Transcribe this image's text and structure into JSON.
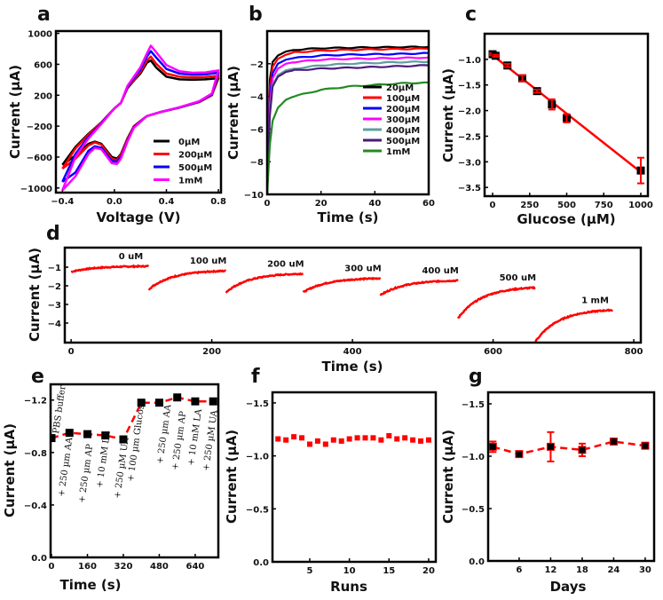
{
  "chart_data": [
    {
      "panel": "a",
      "type": "line",
      "xlabel": "Voltage (V)",
      "ylabel": "Current (µA)",
      "xlim": [
        -0.45,
        0.82
      ],
      "ylim": [
        -1060,
        1030
      ],
      "xticks": [
        -0.4,
        0.0,
        0.4,
        0.8
      ],
      "xtick_labels": [
        "−0.4",
        "0.0",
        "0.4",
        "0.8"
      ],
      "yticks": [
        -1000,
        -600,
        -200,
        200,
        600,
        1000
      ],
      "ytick_labels": [
        "−1000",
        "−600",
        "−200",
        "200",
        "600",
        "1000"
      ],
      "legend": "lower-right",
      "x_forward": [
        -0.4,
        -0.3,
        -0.2,
        -0.1,
        0,
        0.05,
        0.1,
        0.15,
        0.2,
        0.25,
        0.28,
        0.32,
        0.4,
        0.5,
        0.6,
        0.7,
        0.8
      ],
      "x_reverse": [
        0.8,
        0.75,
        0.65,
        0.5,
        0.35,
        0.25,
        0.15,
        0.1,
        0.05,
        0.02,
        -0.02,
        -0.1,
        -0.15,
        -0.2,
        -0.3,
        -0.4
      ],
      "series": [
        {
          "name": "0µM",
          "color": "#000000",
          "y_forward": [
            -700,
            -470,
            -300,
            -150,
            30,
            100,
            290,
            390,
            480,
            620,
            650,
            560,
            440,
            405,
            400,
            405,
            420
          ],
          "y_reverse": [
            420,
            200,
            110,
            40,
            -20,
            -70,
            -200,
            -360,
            -560,
            -620,
            -600,
            -430,
            -400,
            -430,
            -580,
            -700
          ]
        },
        {
          "name": "200µM",
          "color": "#ff0000",
          "y_forward": [
            -750,
            -490,
            -310,
            -150,
            30,
            100,
            300,
            400,
            500,
            650,
            700,
            610,
            480,
            440,
            430,
            435,
            450
          ],
          "y_reverse": [
            450,
            200,
            110,
            40,
            -20,
            -70,
            -200,
            -370,
            -570,
            -640,
            -620,
            -440,
            -410,
            -450,
            -620,
            -750
          ]
        },
        {
          "name": "500µM",
          "color": "#0000ff",
          "y_forward": [
            -920,
            -560,
            -340,
            -160,
            30,
            100,
            310,
            420,
            530,
            700,
            770,
            690,
            540,
            480,
            465,
            470,
            490
          ],
          "y_reverse": [
            490,
            210,
            115,
            40,
            -20,
            -70,
            -210,
            -390,
            -600,
            -660,
            -650,
            -480,
            -460,
            -520,
            -800,
            -920
          ]
        },
        {
          "name": "1mM",
          "color": "#ff00ff",
          "y_forward": [
            -1030,
            -600,
            -360,
            -170,
            30,
            100,
            320,
            440,
            560,
            740,
            840,
            760,
            590,
            510,
            490,
            495,
            520
          ],
          "y_reverse": [
            520,
            220,
            120,
            45,
            -20,
            -70,
            -220,
            -400,
            -620,
            -690,
            -680,
            -500,
            -480,
            -560,
            -850,
            -1030
          ]
        }
      ]
    },
    {
      "panel": "b",
      "type": "line",
      "xlabel": "Time (s)",
      "ylabel": "Current (µA)",
      "xlim": [
        0,
        60
      ],
      "ylim": [
        -10,
        0
      ],
      "xticks": [
        0,
        20,
        40,
        60
      ],
      "xtick_labels": [
        "0",
        "20",
        "40",
        "60"
      ],
      "yticks": [
        -10,
        -8,
        -6,
        -4,
        -2
      ],
      "ytick_labels": [
        "−10",
        "−8",
        "−6",
        "−4",
        "−2"
      ],
      "legend": "lower-right",
      "x": [
        0,
        1,
        2,
        4,
        7,
        10,
        20,
        30,
        40,
        50,
        60
      ],
      "series": [
        {
          "name": "20µM",
          "color": "#000000",
          "y": [
            -10,
            -3,
            -1.9,
            -1.5,
            -1.25,
            -1.15,
            -1.05,
            -1.02,
            -1.0,
            -0.98,
            -0.97
          ]
        },
        {
          "name": "100µM",
          "color": "#ff0000",
          "y": [
            -10,
            -3.5,
            -2.2,
            -1.7,
            -1.45,
            -1.3,
            -1.2,
            -1.15,
            -1.12,
            -1.1,
            -1.08
          ]
        },
        {
          "name": "200µM",
          "color": "#0000ff",
          "y": [
            -10,
            -4,
            -2.6,
            -2.0,
            -1.75,
            -1.65,
            -1.5,
            -1.45,
            -1.42,
            -1.4,
            -1.35
          ]
        },
        {
          "name": "300µM",
          "color": "#ff00ff",
          "y": [
            -10,
            -4.5,
            -2.9,
            -2.3,
            -2.0,
            -1.9,
            -1.75,
            -1.7,
            -1.68,
            -1.65,
            -1.62
          ]
        },
        {
          "name": "400µM",
          "color": "#5f9ea0",
          "y": [
            -10,
            -5,
            -3.3,
            -2.7,
            -2.4,
            -2.3,
            -2.1,
            -2.0,
            -1.95,
            -1.9,
            -1.88
          ]
        },
        {
          "name": "500µM",
          "color": "#4b1a80",
          "y": [
            -10,
            -5.2,
            -3.4,
            -2.8,
            -2.5,
            -2.4,
            -2.3,
            -2.25,
            -2.2,
            -2.15,
            -2.1
          ]
        },
        {
          "name": "1mM",
          "color": "#228b22",
          "y": [
            -10,
            -7,
            -5.5,
            -4.7,
            -4.2,
            -4.0,
            -3.6,
            -3.4,
            -3.3,
            -3.2,
            -3.15
          ]
        }
      ]
    },
    {
      "panel": "c",
      "type": "scatter",
      "xlabel": "Glucose (µM)",
      "ylabel": "Current (µA)",
      "xlim": [
        -54,
        1048
      ],
      "ylim": [
        -3.67,
        -0.5
      ],
      "xticks": [
        0,
        250,
        500,
        750,
        1000
      ],
      "xtick_labels": [
        "0",
        "250",
        "500",
        "750",
        "1000"
      ],
      "yticks": [
        -3.5,
        -3.0,
        -2.5,
        -2.0,
        -1.5,
        -1.0
      ],
      "ytick_labels": [
        "−3.5",
        "−3.0",
        "−2.5",
        "−2.0",
        "−1.5",
        "−1.0"
      ],
      "x": [
        0,
        20,
        100,
        200,
        300,
        400,
        500,
        1000
      ],
      "y": [
        -0.9,
        -0.93,
        -1.12,
        -1.37,
        -1.62,
        -1.88,
        -2.15,
        -3.17
      ],
      "error": [
        0.02,
        0.02,
        0.03,
        0.06,
        0.03,
        0.1,
        0.08,
        0.25
      ],
      "fit_line": {
        "x": [
          0,
          1000
        ],
        "y": [
          -0.92,
          -3.2
        ],
        "color": "#ff0000"
      },
      "marker_color": "#000000"
    },
    {
      "panel": "d",
      "type": "line",
      "xlabel": "Time (s)",
      "ylabel": "Current (µA)",
      "xlim": [
        -9,
        810
      ],
      "ylim": [
        -5.05,
        0.05
      ],
      "xticks": [
        0,
        200,
        400,
        600,
        800
      ],
      "xtick_labels": [
        "0",
        "200",
        "400",
        "600",
        "800"
      ],
      "yticks": [
        -4,
        -3,
        -2,
        -1
      ],
      "ytick_labels": [
        "−4",
        "−3",
        "−2",
        "−1"
      ],
      "color": "#ff0000",
      "segments": [
        {
          "label": "0 uM",
          "t_start": 0,
          "t_end": 110,
          "i_start": -1.25,
          "i_end": -0.95
        },
        {
          "label": "100 uM",
          "t_start": 110,
          "t_end": 220,
          "i_start": -2.2,
          "i_end": -1.2
        },
        {
          "label": "200 uM",
          "t_start": 220,
          "t_end": 330,
          "i_start": -2.35,
          "i_end": -1.35
        },
        {
          "label": "300 uM",
          "t_start": 330,
          "t_end": 440,
          "i_start": -2.35,
          "i_end": -1.6
        },
        {
          "label": "400 uM",
          "t_start": 440,
          "t_end": 550,
          "i_start": -2.5,
          "i_end": -1.72
        },
        {
          "label": "500 uM",
          "t_start": 550,
          "t_end": 660,
          "i_start": -3.75,
          "i_end": -2.1
        },
        {
          "label": "1 mM",
          "t_start": 660,
          "t_end": 770,
          "i_start": -5.0,
          "i_end": -3.3
        }
      ]
    },
    {
      "panel": "e",
      "type": "line",
      "xlabel": "Time (s)",
      "ylabel": "Current (µA)",
      "xlim": [
        -4,
        743
      ],
      "ylim": [
        0,
        -1.32
      ],
      "xticks": [
        0,
        160,
        320,
        480,
        640
      ],
      "xtick_labels": [
        "0",
        "160",
        "320",
        "480",
        "640"
      ],
      "yticks": [
        0,
        -0.4,
        -0.8,
        -1.2
      ],
      "ytick_labels": [
        "0.0",
        "−0.4",
        "−0.8",
        "−1.2"
      ],
      "x": [
        0,
        80,
        160,
        240,
        320,
        400,
        480,
        560,
        640,
        720
      ],
      "y": [
        -0.91,
        -0.95,
        -0.94,
        -0.93,
        -0.9,
        -1.18,
        -1.18,
        -1.22,
        -1.19,
        -1.19
      ],
      "line_color": "#ff0000",
      "marker_color": "#000000",
      "annotations": [
        "PBS buffer",
        "+ 250 µm AA",
        "+ 250 µm AP",
        "+ 10 mM LA",
        "+ 250 µM UA",
        "+ 100 µm Glucose",
        "+ 250 µm AA",
        "+ 250 µm AP",
        "+ 10 mM LA",
        "+ 250 µM UA"
      ]
    },
    {
      "panel": "f",
      "type": "scatter",
      "xlabel": "Runs",
      "ylabel": "Current (µA)",
      "xlim": [
        0.3,
        20.9
      ],
      "ylim": [
        0,
        -1.6
      ],
      "xticks": [
        5,
        10,
        15,
        20
      ],
      "xtick_labels": [
        "5",
        "10",
        "15",
        "20"
      ],
      "yticks": [
        0,
        -0.5,
        -1.0,
        -1.5
      ],
      "ytick_labels": [
        "0.0",
        "−0.5",
        "−1.0",
        "−1.5"
      ],
      "x": [
        1,
        2,
        3,
        4,
        5,
        6,
        7,
        8,
        9,
        10,
        11,
        12,
        13,
        14,
        15,
        16,
        17,
        18,
        19,
        20
      ],
      "y": [
        -1.16,
        -1.15,
        -1.18,
        -1.17,
        -1.11,
        -1.14,
        -1.11,
        -1.15,
        -1.14,
        -1.16,
        -1.17,
        -1.17,
        -1.17,
        -1.15,
        -1.19,
        -1.16,
        -1.17,
        -1.15,
        -1.14,
        -1.15
      ],
      "marker_color": "#ff0000"
    },
    {
      "panel": "g",
      "type": "line",
      "xlabel": "Days",
      "ylabel": "Current (µA)",
      "xlim": [
        0.1,
        31.7
      ],
      "ylim": [
        0,
        -1.61
      ],
      "xticks": [
        6,
        12,
        18,
        24,
        30
      ],
      "xtick_labels": [
        "6",
        "12",
        "18",
        "24",
        "30"
      ],
      "yticks": [
        0,
        -0.5,
        -1.0,
        -1.5
      ],
      "ytick_labels": [
        "0.0",
        "−0.5",
        "−1.0",
        "−1.5"
      ],
      "x": [
        1,
        6,
        12,
        18,
        24,
        30
      ],
      "y": [
        -1.09,
        -1.02,
        -1.09,
        -1.06,
        -1.14,
        -1.1
      ],
      "error": [
        0.05,
        0.01,
        0.14,
        0.06,
        0.02,
        0.01
      ],
      "line_color": "#ff0000",
      "marker_color": "#000000"
    }
  ]
}
